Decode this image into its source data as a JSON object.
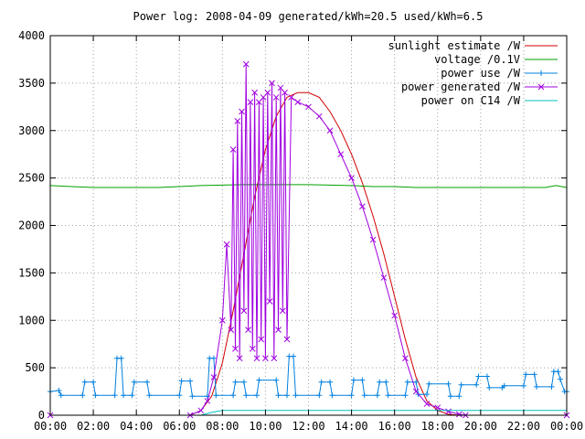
{
  "chart_data": {
    "type": "line",
    "title": "Power log: 2008-04-09 generated/kWh=20.5 used/kWh=6.5",
    "xlabel": "",
    "ylabel": "",
    "xlim": [
      0,
      24
    ],
    "ylim": [
      0,
      4000
    ],
    "grid": true,
    "legend_position": "top-right",
    "x_tick_labels": [
      "00:00",
      "02:00",
      "04:00",
      "06:00",
      "08:00",
      "10:00",
      "12:00",
      "14:00",
      "16:00",
      "18:00",
      "20:00",
      "22:00",
      "00:00"
    ],
    "y_ticks": [
      0,
      500,
      1000,
      1500,
      2000,
      2500,
      3000,
      3500,
      4000
    ],
    "series": [
      {
        "name": "sunlight estimate /W",
        "color": "#d00000",
        "marker": "none",
        "x": [
          0,
          6.5,
          7,
          7.5,
          8,
          8.5,
          9,
          9.5,
          10,
          10.5,
          11,
          11.5,
          12,
          12.5,
          13,
          13.5,
          14,
          14.5,
          15,
          15.5,
          16,
          16.5,
          17,
          17.5,
          18,
          18.5,
          19,
          24
        ],
        "values": [
          0,
          0,
          50,
          200,
          550,
          1100,
          1700,
          2300,
          2800,
          3150,
          3350,
          3400,
          3400,
          3350,
          3200,
          3000,
          2750,
          2450,
          2100,
          1700,
          1250,
          800,
          400,
          150,
          50,
          10,
          0,
          0
        ]
      },
      {
        "name": "voltage /0.1V",
        "color": "#00a000",
        "marker": "none",
        "x": [
          0,
          1,
          2,
          3,
          4,
          5,
          6,
          7,
          8,
          9,
          10,
          11,
          12,
          13,
          14,
          15,
          16,
          17,
          18,
          19,
          20,
          21,
          22,
          23,
          23.5,
          24
        ],
        "values": [
          2420,
          2410,
          2400,
          2400,
          2400,
          2400,
          2410,
          2420,
          2425,
          2430,
          2430,
          2430,
          2430,
          2425,
          2420,
          2410,
          2410,
          2400,
          2400,
          2400,
          2400,
          2400,
          2400,
          2400,
          2420,
          2400
        ]
      },
      {
        "name": "power use /W",
        "color": "#0080e0",
        "marker": "plus",
        "x": [
          0,
          0.4,
          0.5,
          1.5,
          1.6,
          2,
          2.1,
          3,
          3.1,
          3.3,
          3.4,
          3.8,
          3.9,
          4.5,
          4.6,
          6,
          6.1,
          6.5,
          6.6,
          7.3,
          7.4,
          7.6,
          7.7,
          8.5,
          8.6,
          9,
          9.1,
          9.6,
          9.7,
          10.5,
          10.6,
          11,
          11.1,
          11.3,
          11.4,
          12.5,
          12.6,
          13,
          13.1,
          14,
          14.1,
          14.5,
          14.6,
          15.2,
          15.3,
          15.6,
          15.7,
          16.5,
          16.6,
          17,
          17.1,
          17.5,
          17.6,
          18.5,
          18.6,
          19,
          19.1,
          19.8,
          19.9,
          20.3,
          20.4,
          21,
          21.1,
          22,
          22.1,
          22.5,
          22.6,
          23.3,
          23.4,
          23.6,
          23.7,
          23.9,
          24
        ],
        "values": [
          250,
          260,
          210,
          210,
          350,
          350,
          210,
          210,
          600,
          600,
          210,
          210,
          350,
          350,
          210,
          210,
          360,
          360,
          200,
          200,
          600,
          600,
          210,
          210,
          350,
          350,
          210,
          210,
          370,
          370,
          210,
          210,
          620,
          620,
          210,
          210,
          350,
          350,
          210,
          210,
          370,
          370,
          210,
          210,
          350,
          350,
          210,
          210,
          350,
          350,
          220,
          220,
          330,
          330,
          200,
          200,
          320,
          320,
          410,
          410,
          290,
          290,
          310,
          310,
          430,
          430,
          300,
          300,
          460,
          460,
          380,
          250,
          250
        ]
      },
      {
        "name": "power generated /W",
        "color": "#a000e0",
        "marker": "x",
        "x": [
          0,
          6.5,
          7,
          7.3,
          7.6,
          8,
          8.2,
          8.4,
          8.5,
          8.6,
          8.7,
          8.8,
          8.9,
          9,
          9.1,
          9.2,
          9.3,
          9.4,
          9.5,
          9.6,
          9.7,
          9.8,
          9.9,
          10,
          10.1,
          10.2,
          10.3,
          10.4,
          10.5,
          10.6,
          10.7,
          10.8,
          10.9,
          11,
          11.2,
          11.5,
          12,
          12.5,
          13,
          13.5,
          14,
          14.5,
          15,
          15.5,
          16,
          16.5,
          17,
          17.5,
          18,
          18.5,
          19,
          19.3,
          24
        ],
        "values": [
          0,
          0,
          50,
          150,
          400,
          1000,
          1800,
          900,
          2800,
          700,
          3100,
          600,
          3200,
          1100,
          3700,
          900,
          3300,
          700,
          3400,
          600,
          3300,
          800,
          3350,
          600,
          3400,
          1200,
          3500,
          600,
          3350,
          900,
          3450,
          1100,
          3400,
          800,
          3350,
          3300,
          3250,
          3150,
          3000,
          2750,
          2500,
          2200,
          1850,
          1450,
          1050,
          600,
          250,
          120,
          80,
          40,
          10,
          0,
          0
        ]
      },
      {
        "name": "power on C14 /W",
        "color": "#00c0c0",
        "marker": "none",
        "x": [
          0,
          7,
          7.5,
          8,
          12,
          16,
          20,
          24
        ],
        "values": [
          0,
          0,
          30,
          50,
          50,
          50,
          50,
          50
        ]
      }
    ]
  }
}
